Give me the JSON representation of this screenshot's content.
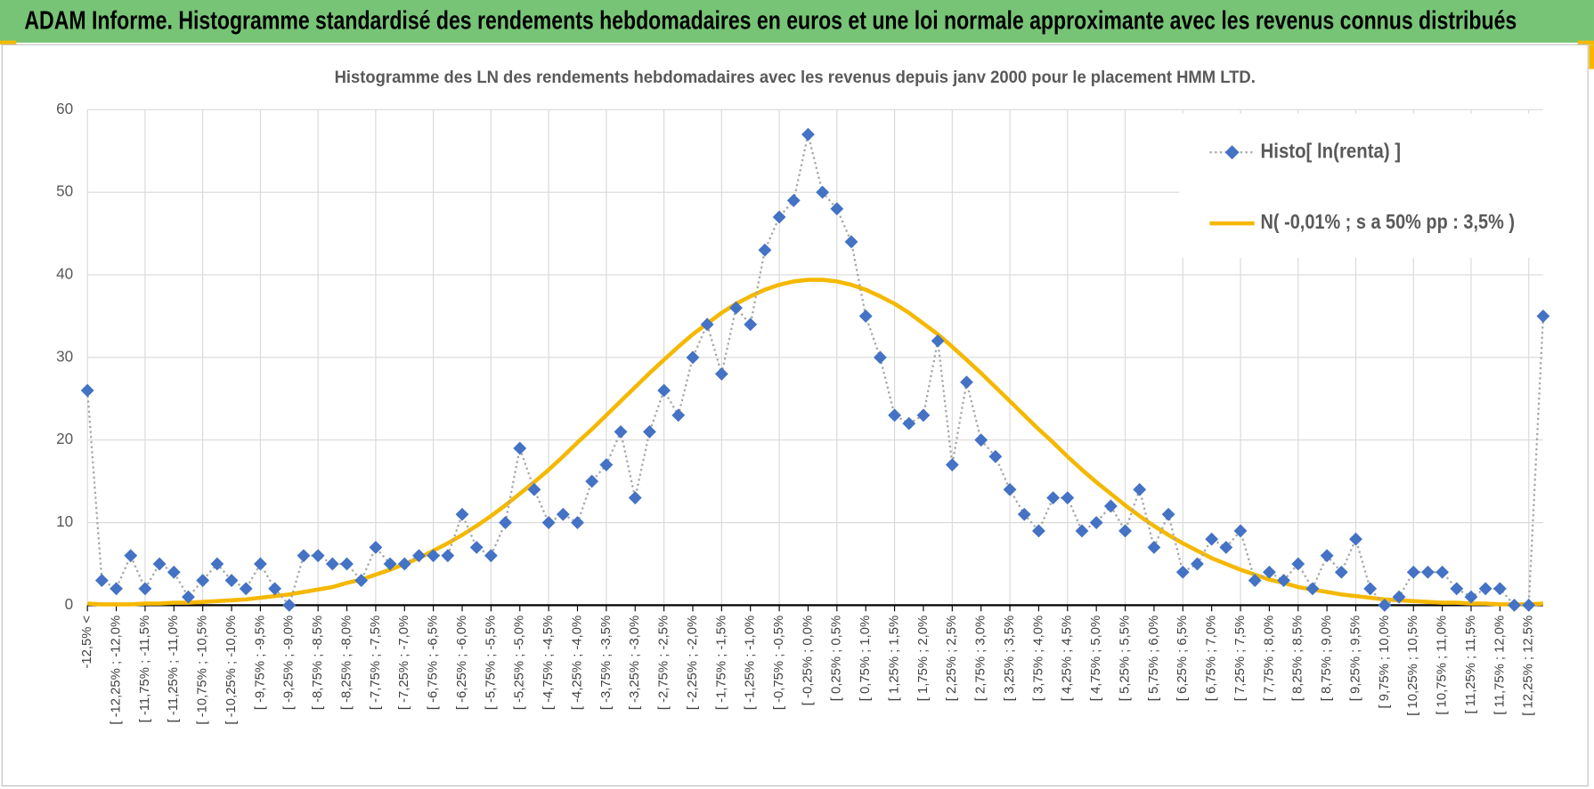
{
  "header": {
    "title": "ADAM Informe. Histogramme standardisé des rendements hebdomadaires en euros et une loi normale approximante avec les revenus connus distribués"
  },
  "chart_data": {
    "type": "line",
    "title": "Histogramme  des LN des rendements hebdomadaires avec les revenus depuis janv 2000 pour le placement HMM LTD.",
    "categories": [
      "-12,5% <",
      null,
      "[ -12,25% ; -12,0%",
      null,
      "[ -11,75% ; -11,5%",
      null,
      "[ -11,25% ; -11,0%",
      null,
      "[ -10,75% ; -10,5%",
      null,
      "[ -10,25% ; -10,0%",
      null,
      "[ -9,75% ; -9,5%",
      null,
      "[ -9,25% ; -9,0%",
      null,
      "[ -8,75% ; -8,5%",
      null,
      "[ -8,25% ; -8,0%",
      null,
      "[ -7,75% ; -7,5%",
      null,
      "[ -7,25% ; -7,0%",
      null,
      "[ -6,75% ; -6,5%",
      null,
      "[ -6,25% ; -6,0%",
      null,
      "[ -5,75% ; -5,5%",
      null,
      "[ -5,25% ; -5,0%",
      null,
      "[ -4,75% ; -4,5%",
      null,
      "[ -4,25% ; -4,0%",
      null,
      "[ -3,75% ; -3,5%",
      null,
      "[ -3,25% ; -3,0%",
      null,
      "[ -2,75% ; -2,5%",
      null,
      "[ -2,25% ; -2,0%",
      null,
      "[ -1,75% ; -1,5%",
      null,
      "[ -1,25% ; -1,0%",
      null,
      "[ -0,75% ; -0,5%",
      null,
      "[ -0,25% ; 0,0%",
      null,
      "[ 0,25% ; 0,5%",
      null,
      "[ 0,75% ; 1,0%",
      null,
      "[ 1,25% ; 1,5%",
      null,
      "[ 1,75% ; 2,0%",
      null,
      "[ 2,25% ; 2,5%",
      null,
      "[ 2,75% ; 3,0%",
      null,
      "[ 3,25% ; 3,5%",
      null,
      "[ 3,75% ; 4,0%",
      null,
      "[ 4,25% ; 4,5%",
      null,
      "[ 4,75% ; 5,0%",
      null,
      "[ 5,25% ; 5,5%",
      null,
      "[ 5,75% ; 6,0%",
      null,
      "[ 6,25% ; 6,5%",
      null,
      "[ 6,75% ; 7,0%",
      null,
      "[ 7,25% ; 7,5%",
      null,
      "[ 7,75% ; 8,0%",
      null,
      "[ 8,25% ; 8,5%",
      null,
      "[ 8,75% ; 9,0%",
      null,
      "[ 9,25% ; 9,5%",
      null,
      "[ 9,75% ; 10,0%",
      null,
      "[ 10,25% ; 10,5%",
      null,
      "[ 10,75% ; 11,0%",
      null,
      "[ 11,25% ; 11,5%",
      null,
      "[ 11,75% ; 12,0%",
      null,
      "[ 12,25% ; 12,5%",
      null
    ],
    "series": [
      {
        "name": "Histo[ ln(renta) ]",
        "color": "#4472c4",
        "line_color": "#a6a6a6",
        "line_style": "dotted",
        "marker": "diamond",
        "values": [
          26,
          3,
          2,
          6,
          2,
          5,
          4,
          1,
          3,
          5,
          3,
          2,
          5,
          2,
          0,
          6,
          6,
          5,
          5,
          3,
          7,
          5,
          5,
          6,
          6,
          6,
          11,
          7,
          6,
          10,
          19,
          14,
          10,
          11,
          10,
          15,
          17,
          21,
          13,
          21,
          26,
          23,
          30,
          34,
          28,
          36,
          34,
          43,
          47,
          49,
          57,
          50,
          48,
          44,
          35,
          30,
          23,
          22,
          23,
          32,
          17,
          27,
          20,
          18,
          14,
          11,
          9,
          13,
          13,
          9,
          10,
          12,
          9,
          14,
          7,
          11,
          4,
          5,
          8,
          7,
          9,
          3,
          4,
          3,
          5,
          2,
          6,
          4,
          8,
          2,
          0,
          1,
          4,
          4,
          4,
          2,
          1,
          2,
          2,
          0,
          0,
          35
        ]
      },
      {
        "name": "N( -0,01% ; s a 50% pp : 3,5% )",
        "color": "#f5b800",
        "line_style": "solid",
        "marker": "none",
        "values": [
          0.2,
          0.1,
          0.1,
          0.1,
          0.2,
          0.2,
          0.3,
          0.3,
          0.4,
          0.5,
          0.6,
          0.7,
          0.9,
          1.1,
          1.3,
          1.6,
          1.9,
          2.2,
          2.7,
          3.1,
          3.7,
          4.3,
          5.0,
          5.7,
          6.6,
          7.5,
          8.5,
          9.6,
          10.8,
          12.1,
          13.5,
          14.9,
          16.4,
          18.0,
          19.7,
          21.3,
          23.0,
          24.7,
          26.4,
          28.1,
          29.7,
          31.3,
          32.8,
          34.1,
          35.4,
          36.5,
          37.4,
          38.2,
          38.8,
          39.2,
          39.4,
          39.4,
          39.2,
          38.8,
          38.2,
          37.4,
          36.5,
          35.4,
          34.1,
          32.8,
          31.3,
          29.7,
          28.1,
          26.4,
          24.7,
          23.0,
          21.3,
          19.7,
          18.0,
          16.4,
          14.9,
          13.5,
          12.1,
          10.8,
          9.6,
          8.5,
          7.5,
          6.6,
          5.7,
          5.0,
          4.3,
          3.7,
          3.1,
          2.7,
          2.2,
          1.9,
          1.6,
          1.3,
          1.1,
          0.9,
          0.7,
          0.6,
          0.5,
          0.4,
          0.3,
          0.3,
          0.2,
          0.2,
          0.1,
          0.1,
          0.1,
          0.2
        ]
      }
    ],
    "ylim": [
      0,
      60
    ],
    "yticks": [
      0,
      10,
      20,
      30,
      40,
      50,
      60
    ],
    "grid": true,
    "legend": "upper right"
  }
}
